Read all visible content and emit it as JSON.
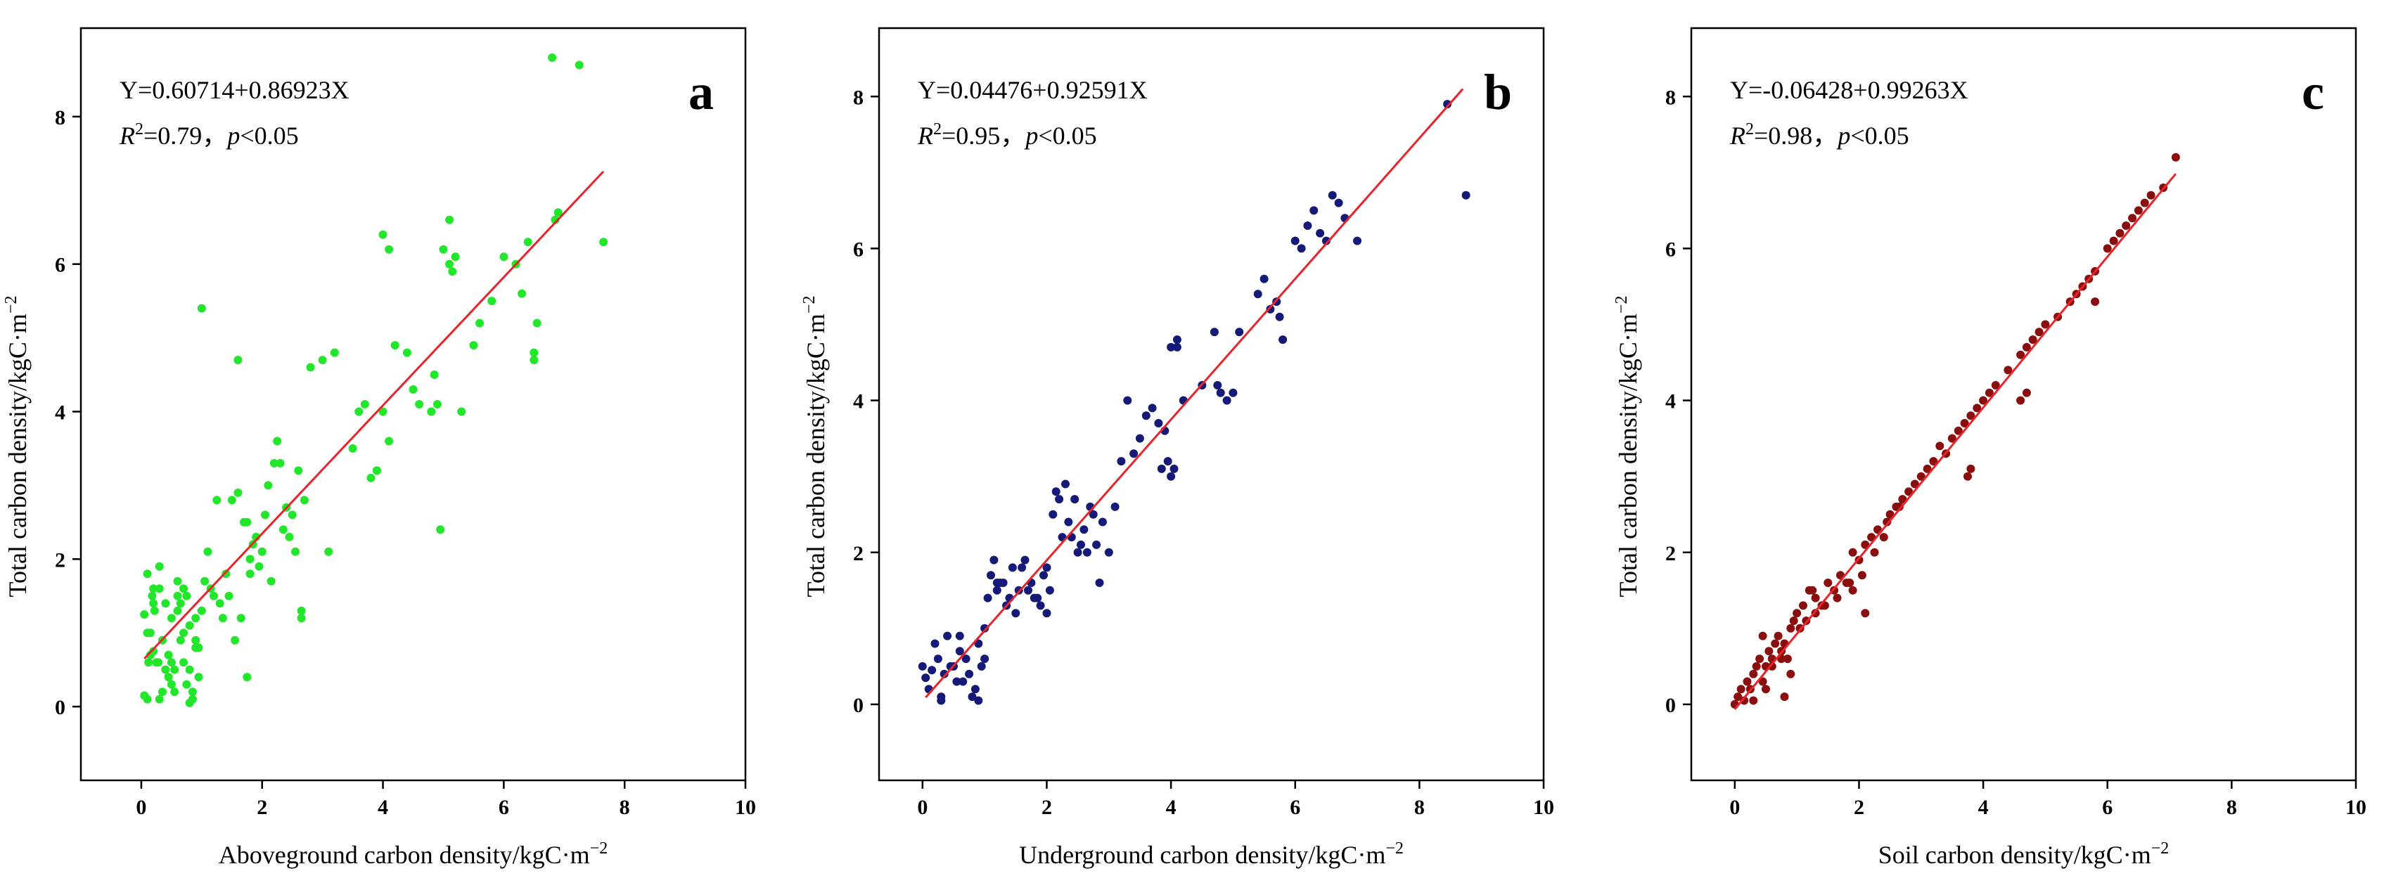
{
  "chart_data": [
    {
      "type": "scatter",
      "panel_label": "a",
      "equation": "Y=0.60714+0.86923X",
      "r2_value": "=0.79，",
      "p_value": "<0.05",
      "xlabel": "Aboveground carbon density/kgC·m",
      "ylabel": "Total carbon density/kgC·m",
      "unit_exponent": "−2",
      "xlim": [
        -1,
        10
      ],
      "ylim": [
        -1,
        9.2
      ],
      "xticks": [
        0,
        2,
        4,
        6,
        8,
        10
      ],
      "yticks": [
        0,
        2,
        4,
        6,
        8
      ],
      "point_color": "#22e62a",
      "fit": {
        "intercept": 0.60714,
        "slope": 0.86923,
        "x_range": [
          0.05,
          7.65
        ]
      },
      "x": [
        0.05,
        0.1,
        0.12,
        0.15,
        0.2,
        0.25,
        0.3,
        0.35,
        0.05,
        0.1,
        0.18,
        0.22,
        0.28,
        0.4,
        0.45,
        0.5,
        0.55,
        0.6,
        0.65,
        0.7,
        0.75,
        0.8,
        0.85,
        0.9,
        0.95,
        0.1,
        0.2,
        0.3,
        0.4,
        0.5,
        0.6,
        0.7,
        0.8,
        0.9,
        1.0,
        1.05,
        1.1,
        0.15,
        0.3,
        0.45,
        0.6,
        0.75,
        0.9,
        0.2,
        0.35,
        0.5,
        0.65,
        0.8,
        0.95,
        0.55,
        0.7,
        0.85,
        1.2,
        1.3,
        1.4,
        1.5,
        1.6,
        1.7,
        1.8,
        1.9,
        2.0,
        2.1,
        2.2,
        1.25,
        1.45,
        1.65,
        1.85,
        2.05,
        2.25,
        2.3,
        2.4,
        2.5,
        2.55,
        2.6,
        2.7,
        1.15,
        1.35,
        1.55,
        1.75,
        1.95,
        2.15,
        2.35,
        2.45,
        2.65,
        1.0,
        1.75,
        2.8,
        3.0,
        3.1,
        3.2,
        3.5,
        3.6,
        3.7,
        3.8,
        3.9,
        4.0,
        4.1,
        4.2,
        4.4,
        4.5,
        4.6,
        4.8,
        4.9,
        5.0,
        5.1,
        5.2,
        5.3,
        5.5,
        5.6,
        5.8,
        6.0,
        6.2,
        6.3,
        6.4,
        6.5,
        6.5,
        6.55,
        6.8,
        6.85,
        6.9,
        7.25,
        7.65,
        4.0,
        4.1,
        5.1,
        5.15,
        3.9,
        4.95,
        2.65,
        1.8,
        1.6,
        4.85
      ],
      "y": [
        0.15,
        0.1,
        0.6,
        0.7,
        0.75,
        0.6,
        0.1,
        0.2,
        1.25,
        1.0,
        1.5,
        1.3,
        0.6,
        0.5,
        0.4,
        0.3,
        0.2,
        1.3,
        0.9,
        0.6,
        0.3,
        0.05,
        0.1,
        0.8,
        0.4,
        1.8,
        1.6,
        1.9,
        1.4,
        1.2,
        1.5,
        1.6,
        1.1,
        0.9,
        1.3,
        1.7,
        2.1,
        1.0,
        1.6,
        0.7,
        1.7,
        1.5,
        1.2,
        1.4,
        0.9,
        0.6,
        1.4,
        0.5,
        0.8,
        0.5,
        1.0,
        0.2,
        1.5,
        1.4,
        1.8,
        2.8,
        2.9,
        2.5,
        2.0,
        2.3,
        2.1,
        3.0,
        3.3,
        2.8,
        1.5,
        1.2,
        2.2,
        2.6,
        3.6,
        3.3,
        2.7,
        2.6,
        2.1,
        3.2,
        2.8,
        1.6,
        1.2,
        0.9,
        0.4,
        1.9,
        1.7,
        2.4,
        2.3,
        1.3,
        5.4,
        2.5,
        4.6,
        4.7,
        2.1,
        4.8,
        3.5,
        4.0,
        4.1,
        3.1,
        3.2,
        6.4,
        6.2,
        4.9,
        4.8,
        4.3,
        4.1,
        4.0,
        4.1,
        6.2,
        6.6,
        6.1,
        4.0,
        4.9,
        5.2,
        5.5,
        6.1,
        6.0,
        5.6,
        6.3,
        4.8,
        4.7,
        5.2,
        8.8,
        6.6,
        6.7,
        8.7,
        6.3,
        4.0,
        3.6,
        6.0,
        5.9,
        3.2,
        2.4,
        1.2,
        1.8,
        4.7,
        4.5
      ]
    },
    {
      "type": "scatter",
      "panel_label": "b",
      "equation": "Y=0.04476+0.92591X",
      "r2_value": "=0.95，",
      "p_value": "<0.05",
      "xlabel": "Underground carbon density/kgC·m",
      "ylabel": "Total carbon density/kgC·m",
      "unit_exponent": "−2",
      "xlim": [
        -0.7,
        10
      ],
      "ylim": [
        -1,
        8.9
      ],
      "xticks": [
        0,
        2,
        4,
        6,
        8,
        10
      ],
      "yticks": [
        0,
        2,
        4,
        6,
        8
      ],
      "point_color": "#151a78",
      "fit": {
        "intercept": 0.04476,
        "slope": 0.92591,
        "x_range": [
          0.05,
          8.7
        ]
      },
      "x": [
        0.0,
        0.05,
        0.1,
        0.2,
        0.25,
        0.3,
        0.35,
        0.4,
        0.5,
        0.55,
        0.6,
        0.7,
        0.75,
        0.8,
        0.85,
        0.9,
        0.95,
        1.0,
        1.05,
        1.1,
        1.15,
        1.2,
        1.3,
        1.4,
        1.5,
        1.6,
        1.7,
        1.8,
        1.9,
        2.0,
        2.1,
        2.2,
        2.3,
        2.4,
        2.5,
        2.6,
        2.7,
        2.8,
        2.9,
        1.25,
        1.35,
        1.45,
        1.55,
        1.65,
        1.75,
        1.85,
        1.95,
        2.05,
        2.15,
        2.25,
        2.35,
        2.45,
        2.55,
        2.65,
        2.75,
        2.85,
        3.0,
        3.1,
        3.2,
        3.3,
        3.4,
        3.5,
        3.6,
        3.7,
        3.8,
        3.9,
        4.0,
        4.05,
        4.1,
        4.2,
        4.5,
        4.7,
        4.8,
        4.9,
        5.0,
        5.1,
        5.4,
        5.5,
        5.6,
        5.7,
        5.75,
        5.8,
        6.0,
        6.1,
        6.2,
        6.3,
        6.4,
        6.5,
        6.6,
        6.7,
        6.8,
        7.0,
        8.45,
        8.75,
        0.3,
        0.6,
        0.9,
        1.0,
        0.15,
        0.45,
        0.65,
        1.2,
        2.0,
        3.85,
        3.95,
        4.0,
        4.1,
        4.75
      ],
      "y": [
        0.5,
        0.35,
        0.2,
        0.8,
        0.6,
        0.1,
        0.4,
        0.9,
        0.5,
        0.3,
        0.9,
        0.6,
        0.4,
        0.1,
        0.2,
        0.8,
        0.5,
        1.0,
        1.4,
        1.7,
        1.9,
        1.5,
        1.6,
        1.4,
        1.2,
        1.8,
        1.5,
        1.4,
        1.3,
        1.2,
        2.5,
        2.7,
        2.9,
        2.2,
        2.0,
        2.3,
        2.6,
        2.1,
        2.4,
        1.6,
        1.3,
        1.8,
        1.5,
        1.9,
        1.6,
        1.4,
        1.7,
        1.5,
        2.8,
        2.2,
        2.4,
        2.7,
        2.1,
        2.0,
        2.5,
        1.6,
        2.0,
        2.6,
        3.2,
        4.0,
        3.3,
        3.5,
        3.8,
        3.9,
        3.7,
        3.6,
        3.0,
        3.1,
        4.8,
        4.0,
        4.2,
        4.9,
        4.1,
        4.0,
        4.1,
        4.9,
        5.4,
        5.6,
        5.2,
        5.3,
        5.1,
        4.8,
        6.1,
        6.0,
        6.3,
        6.5,
        6.2,
        6.1,
        6.7,
        6.6,
        6.4,
        6.1,
        7.9,
        6.7,
        0.05,
        0.7,
        0.05,
        0.6,
        0.45,
        0.5,
        0.3,
        1.6,
        1.8,
        3.1,
        3.2,
        4.7,
        4.7,
        4.2
      ]
    },
    {
      "type": "scatter",
      "panel_label": "c",
      "equation": "Y=-0.06428+0.99263X",
      "r2_value": "=0.98，",
      "p_value": "<0.05",
      "xlabel": "Soil carbon density/kgC·m",
      "ylabel": "Total carbon density/kgC·m",
      "unit_exponent": "−2",
      "xlim": [
        -0.7,
        10
      ],
      "ylim": [
        -1,
        8.9
      ],
      "xticks": [
        0,
        2,
        4,
        6,
        8,
        10
      ],
      "yticks": [
        0,
        2,
        4,
        6,
        8
      ],
      "point_color": "#8b0e0e",
      "fit": {
        "intercept": -0.06428,
        "slope": 0.99263,
        "x_range": [
          0.0,
          7.1
        ]
      },
      "x": [
        0.0,
        0.05,
        0.1,
        0.15,
        0.2,
        0.25,
        0.3,
        0.35,
        0.4,
        0.45,
        0.5,
        0.55,
        0.6,
        0.65,
        0.7,
        0.75,
        0.8,
        0.85,
        0.9,
        0.95,
        1.0,
        1.05,
        1.1,
        1.15,
        1.2,
        1.3,
        1.4,
        1.5,
        1.6,
        1.7,
        1.8,
        1.9,
        2.0,
        2.1,
        2.2,
        2.3,
        2.4,
        2.5,
        2.6,
        2.7,
        2.8,
        2.9,
        3.0,
        3.1,
        3.2,
        3.3,
        3.4,
        3.5,
        3.6,
        3.7,
        3.8,
        3.9,
        4.0,
        4.1,
        4.2,
        4.4,
        4.6,
        4.7,
        4.8,
        4.9,
        5.0,
        5.2,
        5.4,
        5.5,
        5.6,
        5.7,
        5.8,
        6.0,
        6.1,
        6.2,
        6.3,
        6.4,
        6.5,
        6.6,
        6.7,
        6.9,
        7.1,
        0.3,
        0.45,
        0.6,
        0.75,
        0.9,
        1.05,
        1.25,
        1.45,
        1.65,
        1.85,
        2.05,
        2.25,
        2.45,
        2.65,
        3.75,
        3.8,
        4.6,
        4.7,
        5.8,
        0.8,
        0.5,
        1.3,
        1.9,
        2.1
      ],
      "y": [
        0.0,
        0.1,
        0.2,
        0.05,
        0.3,
        0.2,
        0.4,
        0.5,
        0.6,
        0.3,
        0.5,
        0.7,
        0.6,
        0.8,
        0.9,
        0.7,
        0.8,
        0.6,
        1.0,
        1.1,
        1.2,
        1.0,
        1.3,
        1.1,
        1.5,
        1.4,
        1.3,
        1.6,
        1.5,
        1.7,
        1.6,
        2.0,
        1.9,
        2.1,
        2.2,
        2.3,
        2.2,
        2.5,
        2.6,
        2.7,
        2.8,
        2.9,
        3.0,
        3.1,
        3.2,
        3.4,
        3.3,
        3.5,
        3.6,
        3.7,
        3.8,
        3.9,
        4.0,
        4.1,
        4.2,
        4.4,
        4.6,
        4.7,
        4.8,
        4.9,
        5.0,
        5.1,
        5.3,
        5.4,
        5.5,
        5.6,
        5.7,
        6.0,
        6.1,
        6.2,
        6.3,
        6.4,
        6.5,
        6.6,
        6.7,
        6.8,
        7.2,
        0.05,
        0.9,
        0.5,
        0.6,
        0.4,
        1.0,
        1.5,
        1.3,
        1.4,
        1.6,
        1.7,
        2.0,
        2.4,
        2.6,
        3.0,
        3.1,
        4.0,
        4.1,
        5.3,
        0.1,
        0.2,
        1.2,
        1.5,
        1.2
      ]
    }
  ]
}
